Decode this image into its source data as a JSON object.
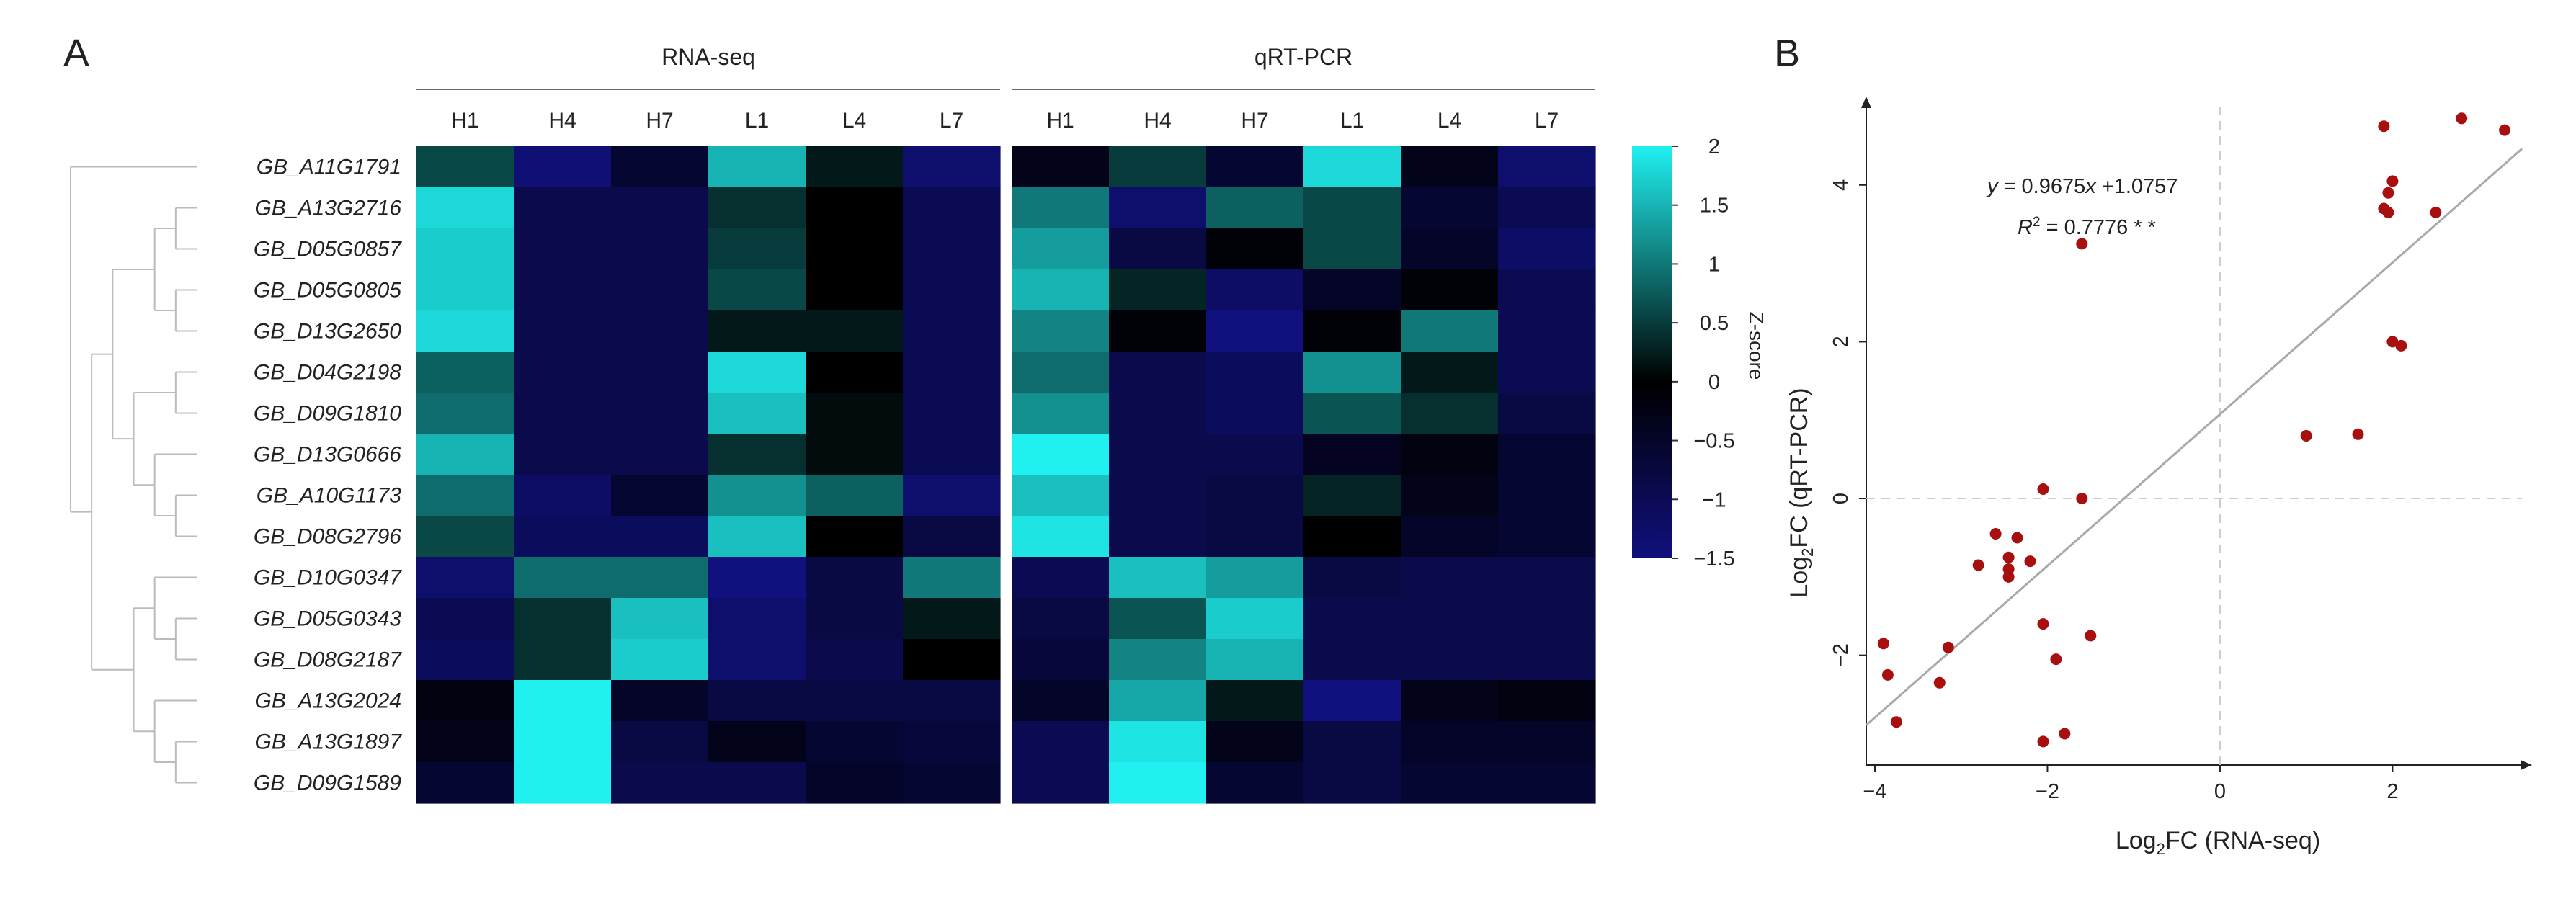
{
  "panel_a": {
    "label": "A",
    "groups": [
      "RNA-seq",
      "qRT-PCR"
    ],
    "columns": [
      "H1",
      "H4",
      "H7",
      "L1",
      "L4",
      "L7"
    ],
    "genes": [
      "GB_A11G1791",
      "GB_A13G2716",
      "GB_D05G0857",
      "GB_D05G0805",
      "GB_D13G2650",
      "GB_D04G2198",
      "GB_D09G1810",
      "GB_D13G0666",
      "GB_A10G1173",
      "GB_D08G2796",
      "GB_D10G0347",
      "GB_D05G0343",
      "GB_D08G2187",
      "GB_A13G2024",
      "GB_A13G1897",
      "GB_D09G1589"
    ],
    "colorbar": {
      "label": "Z-score",
      "ticks": [
        "2",
        "1.5",
        "1",
        "0.5",
        "0",
        "−0.5",
        "−1",
        "−1.5"
      ],
      "colors": {
        "low": "#10107e",
        "mid": "#000000",
        "high": "#20f0f0"
      }
    }
  },
  "panel_b": {
    "label": "B",
    "equation": "y = 0.9675x +1.0757",
    "r2": "R2 = 0.7776 * *",
    "point_color": "#a81010",
    "line_color": "#a9a9a9"
  },
  "chart_data": [
    {
      "type": "heatmap",
      "title": "RNA-seq",
      "x": [
        "H1",
        "H4",
        "H7",
        "L1",
        "L4",
        "L7"
      ],
      "y": [
        "GB_A11G1791",
        "GB_A13G2716",
        "GB_D05G0857",
        "GB_D05G0805",
        "GB_D13G2650",
        "GB_D04G2198",
        "GB_D09G1810",
        "GB_D13G0666",
        "GB_A10G1173",
        "GB_D08G2796",
        "GB_D10G0347",
        "GB_D05G0343",
        "GB_D08G2187",
        "GB_A13G2024",
        "GB_A13G1897",
        "GB_D09G1589"
      ],
      "z": [
        [
          0.6,
          -1.4,
          -0.6,
          1.5,
          0.2,
          -1.3
        ],
        [
          1.8,
          -0.9,
          -0.9,
          0.4,
          0.0,
          -1.0
        ],
        [
          1.7,
          -0.9,
          -0.9,
          0.5,
          0.0,
          -1.0
        ],
        [
          1.7,
          -0.9,
          -0.9,
          0.6,
          0.0,
          -1.0
        ],
        [
          1.8,
          -0.9,
          -0.9,
          0.2,
          0.2,
          -1.0
        ],
        [
          0.8,
          -0.9,
          -0.9,
          1.8,
          0.0,
          -1.0
        ],
        [
          0.9,
          -0.9,
          -0.9,
          1.6,
          0.1,
          -1.0
        ],
        [
          1.5,
          -0.9,
          -0.9,
          0.4,
          0.1,
          -1.0
        ],
        [
          0.9,
          -1.2,
          -0.6,
          1.2,
          0.8,
          -1.3
        ],
        [
          0.6,
          -1.1,
          -1.1,
          1.6,
          0.0,
          -0.8
        ],
        [
          -1.3,
          0.9,
          0.9,
          -1.5,
          -0.8,
          1.0
        ],
        [
          -1.0,
          0.4,
          1.6,
          -1.3,
          -0.8,
          0.2
        ],
        [
          -1.1,
          0.4,
          1.7,
          -1.3,
          -0.9,
          0.0
        ],
        [
          -0.2,
          2.0,
          -0.5,
          -0.8,
          -0.8,
          -0.8
        ],
        [
          -0.3,
          2.0,
          -0.8,
          -0.3,
          -0.6,
          -0.7
        ],
        [
          -0.6,
          2.0,
          -0.9,
          -0.9,
          -0.5,
          -0.6
        ]
      ],
      "zlim": [
        -1.5,
        2
      ],
      "colorbar_label": "Z-score"
    },
    {
      "type": "heatmap",
      "title": "qRT-PCR",
      "x": [
        "H1",
        "H4",
        "H7",
        "L1",
        "L4",
        "L7"
      ],
      "y": [
        "GB_A11G1791",
        "GB_A13G2716",
        "GB_D05G0857",
        "GB_D05G0805",
        "GB_D13G2650",
        "GB_D04G2198",
        "GB_D09G1810",
        "GB_D13G0666",
        "GB_A10G1173",
        "GB_D08G2796",
        "GB_D10G0347",
        "GB_D05G0343",
        "GB_D08G2187",
        "GB_A13G2024",
        "GB_A13G1897",
        "GB_D09G1589"
      ],
      "z": [
        [
          -0.3,
          0.5,
          -0.6,
          1.8,
          -0.3,
          -1.3
        ],
        [
          1.0,
          -1.3,
          0.8,
          0.6,
          -0.6,
          -1.0
        ],
        [
          1.3,
          -0.8,
          -0.1,
          0.6,
          -0.5,
          -1.2
        ],
        [
          1.5,
          0.3,
          -1.2,
          -0.5,
          -0.1,
          -1.0
        ],
        [
          1.1,
          -0.1,
          -1.5,
          -0.1,
          1.0,
          -1.0
        ],
        [
          0.9,
          -0.9,
          -1.1,
          1.2,
          0.2,
          -1.0
        ],
        [
          1.2,
          -0.9,
          -1.1,
          0.7,
          0.4,
          -0.8
        ],
        [
          2.0,
          -0.9,
          -0.9,
          -0.4,
          -0.2,
          -0.6
        ],
        [
          1.6,
          -0.9,
          -0.8,
          0.3,
          -0.3,
          -0.6
        ],
        [
          1.9,
          -0.9,
          -0.8,
          0.0,
          -0.5,
          -0.6
        ],
        [
          -1.0,
          1.6,
          1.3,
          -0.8,
          -0.9,
          -0.9
        ],
        [
          -0.8,
          0.7,
          1.7,
          -0.9,
          -0.9,
          -0.9
        ],
        [
          -0.7,
          1.1,
          1.5,
          -0.9,
          -0.9,
          -0.9
        ],
        [
          -0.5,
          1.4,
          0.2,
          -1.7,
          -0.3,
          -0.2
        ],
        [
          -1.0,
          1.9,
          -0.3,
          -0.8,
          -0.5,
          -0.5
        ],
        [
          -1.0,
          2.0,
          -0.6,
          -0.8,
          -0.6,
          -0.6
        ]
      ],
      "zlim": [
        -1.5,
        2
      ]
    },
    {
      "type": "scatter",
      "xlabel": "Log2FC (RNA-seq)",
      "ylabel": "Log2FC (qRT-PCR)",
      "xlim": [
        -4.1,
        3.5
      ],
      "ylim": [
        -3.4,
        5.0
      ],
      "xticks": [
        -4,
        -2,
        0,
        2
      ],
      "yticks": [
        -2,
        0,
        2,
        4
      ],
      "points": [
        {
          "x": 1.9,
          "y": 4.75
        },
        {
          "x": 2.8,
          "y": 4.85
        },
        {
          "x": 3.3,
          "y": 4.7
        },
        {
          "x": 2.0,
          "y": 4.05
        },
        {
          "x": 1.95,
          "y": 3.9
        },
        {
          "x": 1.9,
          "y": 3.7
        },
        {
          "x": 1.95,
          "y": 3.65
        },
        {
          "x": 2.5,
          "y": 3.65
        },
        {
          "x": -1.6,
          "y": 3.25
        },
        {
          "x": 2.0,
          "y": 2.0
        },
        {
          "x": 2.1,
          "y": 1.95
        },
        {
          "x": 1.0,
          "y": 0.8
        },
        {
          "x": 1.6,
          "y": 0.82
        },
        {
          "x": -2.05,
          "y": 0.12
        },
        {
          "x": -1.6,
          "y": 0.0
        },
        {
          "x": -2.6,
          "y": -0.45
        },
        {
          "x": -2.35,
          "y": -0.5
        },
        {
          "x": -2.45,
          "y": -0.75
        },
        {
          "x": -2.2,
          "y": -0.8
        },
        {
          "x": -2.8,
          "y": -0.85
        },
        {
          "x": -2.45,
          "y": -0.9
        },
        {
          "x": -2.45,
          "y": -1.0
        },
        {
          "x": -2.05,
          "y": -1.6
        },
        {
          "x": -1.5,
          "y": -1.75
        },
        {
          "x": -3.9,
          "y": -1.85
        },
        {
          "x": -3.15,
          "y": -1.9
        },
        {
          "x": -1.9,
          "y": -2.05
        },
        {
          "x": -3.85,
          "y": -2.25
        },
        {
          "x": -3.25,
          "y": -2.35
        },
        {
          "x": -3.75,
          "y": -2.85
        },
        {
          "x": -1.8,
          "y": -3.0
        },
        {
          "x": -2.05,
          "y": -3.1
        }
      ],
      "fit": {
        "slope": 0.9675,
        "intercept": 1.0757,
        "r2": 0.7776
      },
      "refline_x": 0,
      "refline_y": 0
    }
  ]
}
